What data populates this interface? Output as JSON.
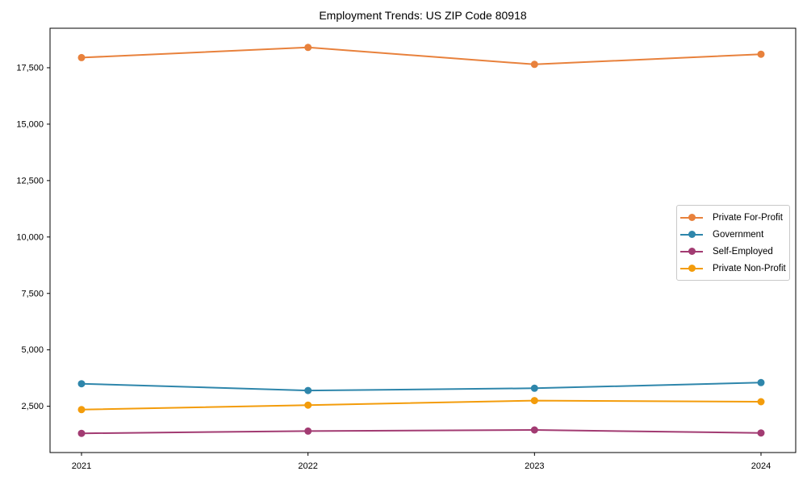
{
  "chart_data": {
    "type": "line",
    "title": "Employment Trends: US ZIP Code 80918",
    "xlabel": "",
    "ylabel": "",
    "x": [
      "2021",
      "2022",
      "2023",
      "2024"
    ],
    "series": [
      {
        "name": "Private For-Profit",
        "color": "#E8813C",
        "values": [
          17950,
          18400,
          17650,
          18100
        ]
      },
      {
        "name": "Government",
        "color": "#2E86AB",
        "values": [
          3500,
          3200,
          3300,
          3550
        ]
      },
      {
        "name": "Self-Employed",
        "color": "#A23B72",
        "values": [
          1300,
          1400,
          1450,
          1320
        ]
      },
      {
        "name": "Private Non-Profit",
        "color": "#F39C0B",
        "values": [
          2350,
          2550,
          2750,
          2700
        ]
      }
    ],
    "yticks": [
      2500,
      5000,
      7500,
      10000,
      12500,
      15000,
      17500
    ],
    "ylim": [
      450,
      19250
    ],
    "grid": false,
    "legend_position": "center right",
    "marker": "circle",
    "axis_color": "#000000",
    "tick_label_color": "#000000"
  }
}
